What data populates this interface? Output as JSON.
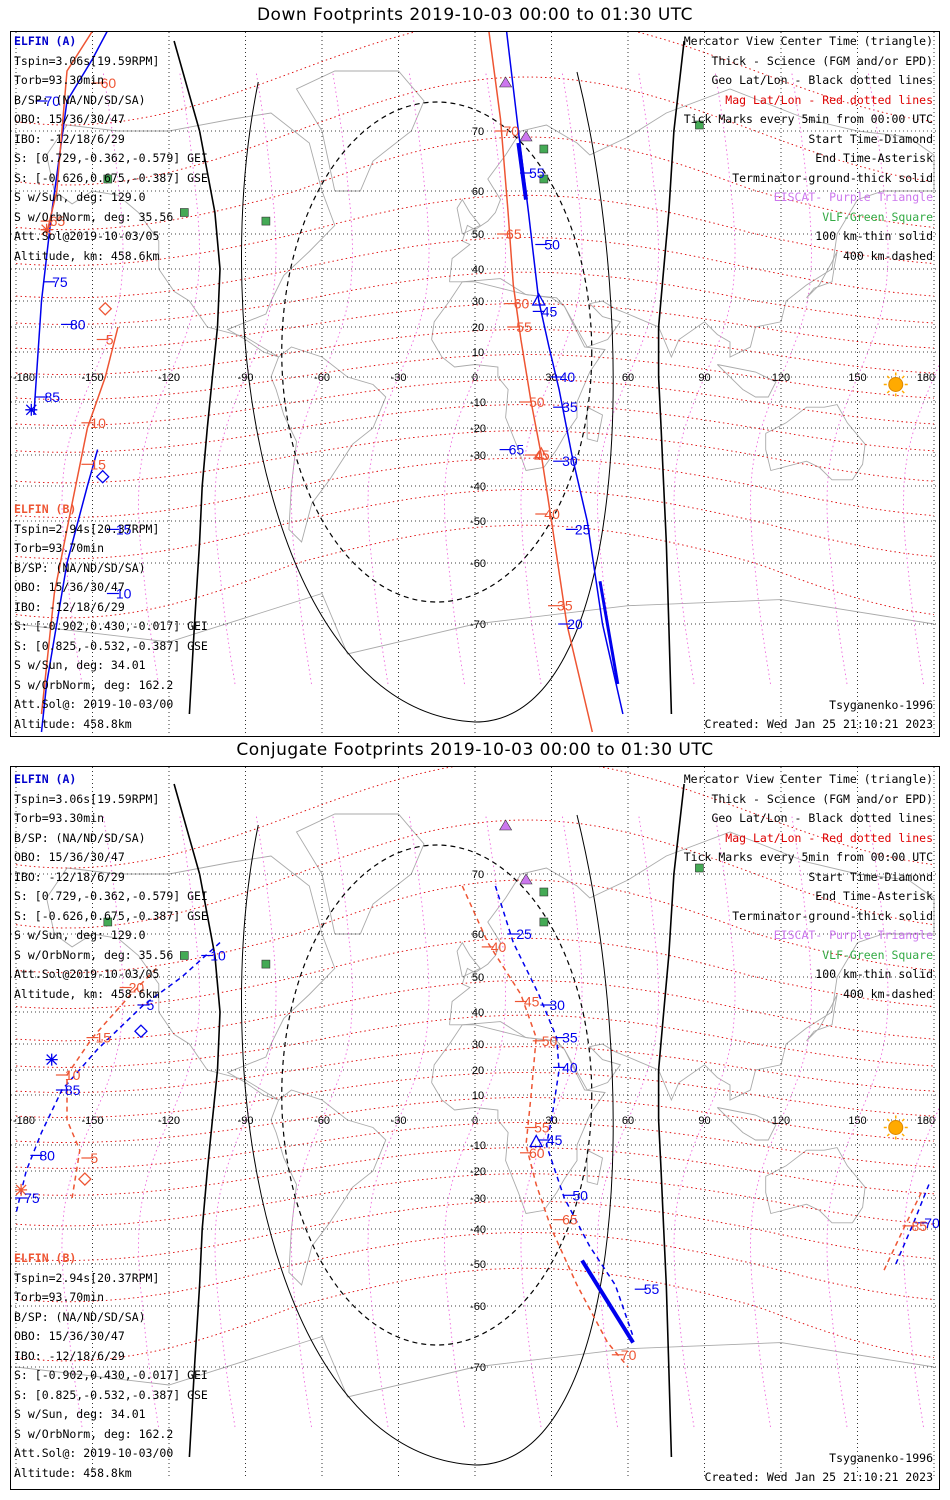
{
  "panels": [
    {
      "title": "Down Footprints 2019-10-03 00:00 to 01:30 UTC",
      "elfin_a": {
        "name": "ELFIN (A)",
        "lines": [
          "Tspin=3.06s[19.59RPM]",
          "Torb=93.30min",
          "B/SP: (NA/ND/SD/SA)",
          "OBO: 15/36/30/47",
          "IBO: -12/18/6/29",
          "S: [0.729,-0.362,-0.579] GEI",
          "S: [-0.626,0.675,-0.387] GSE",
          "S w/Sun, deg: 129.0",
          "S w/OrbNorm, deg: 35.56",
          "Att.Sol@2019-10-03/05",
          "Altitude, km: 458.6km"
        ]
      },
      "elfin_b": {
        "name": "ELFIN (B)",
        "lines": [
          "Tspin=2.94s[20.37RPM]",
          "Torb=93.70min",
          "B/SP: (NA/ND/SD/SA)",
          "OBO: 15/36/30/47",
          "IBO: -12/18/6/29",
          "S: [-0.902,0.430,-0.017] GEI",
          "S: [0.825,-0.532,-0.387] GSE",
          "S w/Sun, deg: 34.01",
          "S w/OrbNorm, deg: 162.2",
          "Att.Sol@: 2019-10-03/00",
          "Altitude: 458.8km"
        ]
      },
      "legend": [
        "Mercator View Center Time (triangle)",
        "Thick - Science (FGM and/or EPD)",
        "Geo Lat/Lon - Black dotted lines",
        "Mag Lat/Lon - Red dotted lines",
        "Tick Marks every 5min from 00:00 UTC",
        "Start Time-Diamond",
        "End Time-Asterisk",
        "Terminator-ground-thick solid",
        "EISCAT- Purple Triangle",
        "VLF-Green Square",
        "100 km-thin solid",
        "400 km-dashed"
      ],
      "model": "Tsyganenko-1996",
      "created": "Created: Wed Jan 25 21:10:21 2023",
      "ticks_a": [
        [
          "65",
          12,
          -28
        ],
        [
          "70",
          -170,
          75
        ],
        [
          "75",
          -167,
          36
        ],
        [
          "80",
          -160,
          21
        ],
        [
          "85",
          -170,
          -8
        ],
        [
          "10",
          -142,
          -65
        ],
        [
          "15",
          -142,
          -52
        ],
        [
          "20",
          35,
          -70
        ],
        [
          "25",
          38,
          -52
        ],
        [
          "30",
          33,
          -32
        ],
        [
          "35",
          33,
          -12
        ],
        [
          "40",
          32,
          0
        ],
        [
          "45",
          25,
          26
        ],
        [
          "50",
          26,
          47
        ],
        [
          "55",
          20,
          63
        ]
      ],
      "ticks_b": [
        [
          "60",
          -148,
          78
        ],
        [
          "65",
          -168,
          53
        ],
        [
          "5",
          -146,
          15
        ],
        [
          "10",
          -152,
          -18
        ],
        [
          "15",
          -152,
          -33
        ],
        [
          "70",
          10,
          70
        ],
        [
          "65",
          11,
          50
        ],
        [
          "60",
          14,
          29
        ],
        [
          "55",
          15,
          20
        ],
        [
          "50",
          20,
          -10
        ],
        [
          "45",
          22,
          -30
        ],
        [
          "40",
          26,
          -48
        ],
        [
          "35",
          31,
          -67
        ]
      ]
    },
    {
      "title": "Conjugate Footprints 2019-10-03 00:00 to 01:30 UTC",
      "elfin_a": {
        "name": "ELFIN (A)",
        "lines": [
          "Tspin=3.06s[19.59RPM]",
          "Torb=93.30min",
          "B/SP: (NA/ND/SD/SA)",
          "OBO: 15/36/30/47",
          "IBO: -12/18/6/29",
          "S: [0.729,-0.362,-0.579] GEI",
          "S: [-0.626,0.675,-0.387] GSE",
          "S w/Sun, deg: 129.0",
          "S w/OrbNorm, deg: 35.56",
          "Att.Sol@2019-10-03/05",
          "Altitude, km: 458.6km"
        ]
      },
      "elfin_b": {
        "name": "ELFIN (B)",
        "lines": [
          "Tspin=2.94s[20.37RPM]",
          "Torb=93.70min",
          "B/SP: (NA/ND/SD/SA)",
          "OBO: 15/36/30/47",
          "IBO: -12/18/6/29",
          "S: [-0.902,0.430,-0.017] GEI",
          "S: [0.825,-0.532,-0.387] GSE",
          "S w/Sun, deg: 34.01",
          "S w/OrbNorm, deg: 162.2",
          "Att.Sol@: 2019-10-03/00",
          "Altitude: 458.8km"
        ]
      },
      "legend": [
        "Mercator View Center Time (triangle)",
        "Thick - Science (FGM and/or EPD)",
        "Geo Lat/Lon - Black dotted lines",
        "Mag Lat/Lon - Red dotted lines",
        "Tick Marks every 5min from 00:00 UTC",
        "Start Time-Diamond",
        "End Time-Asterisk",
        "Terminator-ground-thick solid",
        "EISCAT- Purple Triangle",
        "VLF-Green Square",
        "100 km-thin solid",
        "400 km-dashed"
      ],
      "model": "Tsyganenko-1996",
      "created": "Created: Wed Jan 25 21:10:21 2023",
      "ticks_a": [
        [
          "10",
          -105,
          55
        ],
        [
          "5",
          -130,
          42
        ],
        [
          "85",
          -162,
          12
        ],
        [
          "80",
          -172,
          -14
        ],
        [
          "75",
          -178,
          -30
        ],
        [
          "25",
          15,
          60
        ],
        [
          "30",
          28,
          42
        ],
        [
          "35",
          33,
          32
        ],
        [
          "40",
          33,
          21
        ],
        [
          "45",
          27,
          -8
        ],
        [
          "50",
          37,
          -29
        ],
        [
          "55",
          65,
          -56
        ],
        [
          "70",
          175,
          -38
        ]
      ],
      "ticks_b": [
        [
          "20",
          -137,
          47
        ],
        [
          "15",
          -150,
          32
        ],
        [
          "10",
          -162,
          18
        ],
        [
          "5",
          -152,
          -15
        ],
        [
          "40",
          5,
          57
        ],
        [
          "45",
          18,
          43
        ],
        [
          "50",
          25,
          31
        ],
        [
          "55",
          22,
          -3
        ],
        [
          "60",
          20,
          -13
        ],
        [
          "65",
          33,
          -37
        ],
        [
          "70",
          56,
          -68
        ],
        [
          "85",
          170,
          -39
        ]
      ]
    }
  ],
  "map": {
    "lon_labels": [
      "-180",
      "-150",
      "-120",
      "-90",
      "-60",
      "-30",
      "0",
      "30",
      "60",
      "90",
      "120",
      "150",
      "180"
    ],
    "lat_labels": [
      "70",
      "60",
      "50",
      "40",
      "30",
      "20",
      "10",
      "0",
      "-10",
      "-20",
      "-30",
      "-40",
      "-50",
      "-60",
      "-70"
    ]
  },
  "colors": {
    "elfin_a": "#0000ee",
    "elfin_b": "#ee5533",
    "geo_grid": "#000000",
    "mag_grid": "#dd0000",
    "eiscat": "#cc77ee",
    "vlf": "#44aa55",
    "sun": "#ffaa00"
  }
}
